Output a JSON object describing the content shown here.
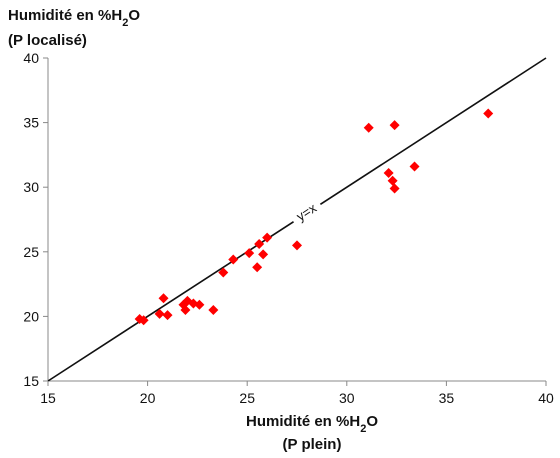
{
  "chart_data": {
    "type": "scatter",
    "y_title": {
      "line1_prefix": "Humidité en %H",
      "line1_sub": "2",
      "line1_suffix": "O",
      "line2": "(P localisé)"
    },
    "x_title": {
      "line1_prefix": "Humidité en %H",
      "line1_sub": "2",
      "line1_suffix": "O",
      "line2": "(P plein)"
    },
    "xlim": [
      15,
      40
    ],
    "ylim": [
      15,
      40
    ],
    "x_ticks": [
      "15",
      "20",
      "25",
      "30",
      "35",
      "40"
    ],
    "y_ticks": [
      "15",
      "20",
      "25",
      "30",
      "35",
      "40"
    ],
    "grid": false,
    "reference_line": {
      "label": "y=x",
      "slope": 1,
      "intercept": 0
    },
    "marker": {
      "shape": "diamond",
      "color": "#ff0000"
    },
    "points": [
      {
        "x": 19.6,
        "y": 19.8
      },
      {
        "x": 19.8,
        "y": 19.7
      },
      {
        "x": 20.6,
        "y": 20.2
      },
      {
        "x": 20.8,
        "y": 21.4
      },
      {
        "x": 21.0,
        "y": 20.1
      },
      {
        "x": 21.8,
        "y": 20.9
      },
      {
        "x": 21.9,
        "y": 20.5
      },
      {
        "x": 22.0,
        "y": 21.2
      },
      {
        "x": 22.3,
        "y": 21.0
      },
      {
        "x": 22.6,
        "y": 20.9
      },
      {
        "x": 23.3,
        "y": 20.5
      },
      {
        "x": 23.8,
        "y": 23.4
      },
      {
        "x": 24.3,
        "y": 24.4
      },
      {
        "x": 25.1,
        "y": 24.9
      },
      {
        "x": 25.5,
        "y": 23.8
      },
      {
        "x": 25.6,
        "y": 25.6
      },
      {
        "x": 25.8,
        "y": 24.8
      },
      {
        "x": 26.0,
        "y": 26.1
      },
      {
        "x": 27.5,
        "y": 25.5
      },
      {
        "x": 31.1,
        "y": 34.6
      },
      {
        "x": 32.1,
        "y": 31.1
      },
      {
        "x": 32.3,
        "y": 30.5
      },
      {
        "x": 32.4,
        "y": 29.9
      },
      {
        "x": 32.4,
        "y": 34.8
      },
      {
        "x": 33.4,
        "y": 31.6
      },
      {
        "x": 37.1,
        "y": 35.7
      }
    ]
  }
}
